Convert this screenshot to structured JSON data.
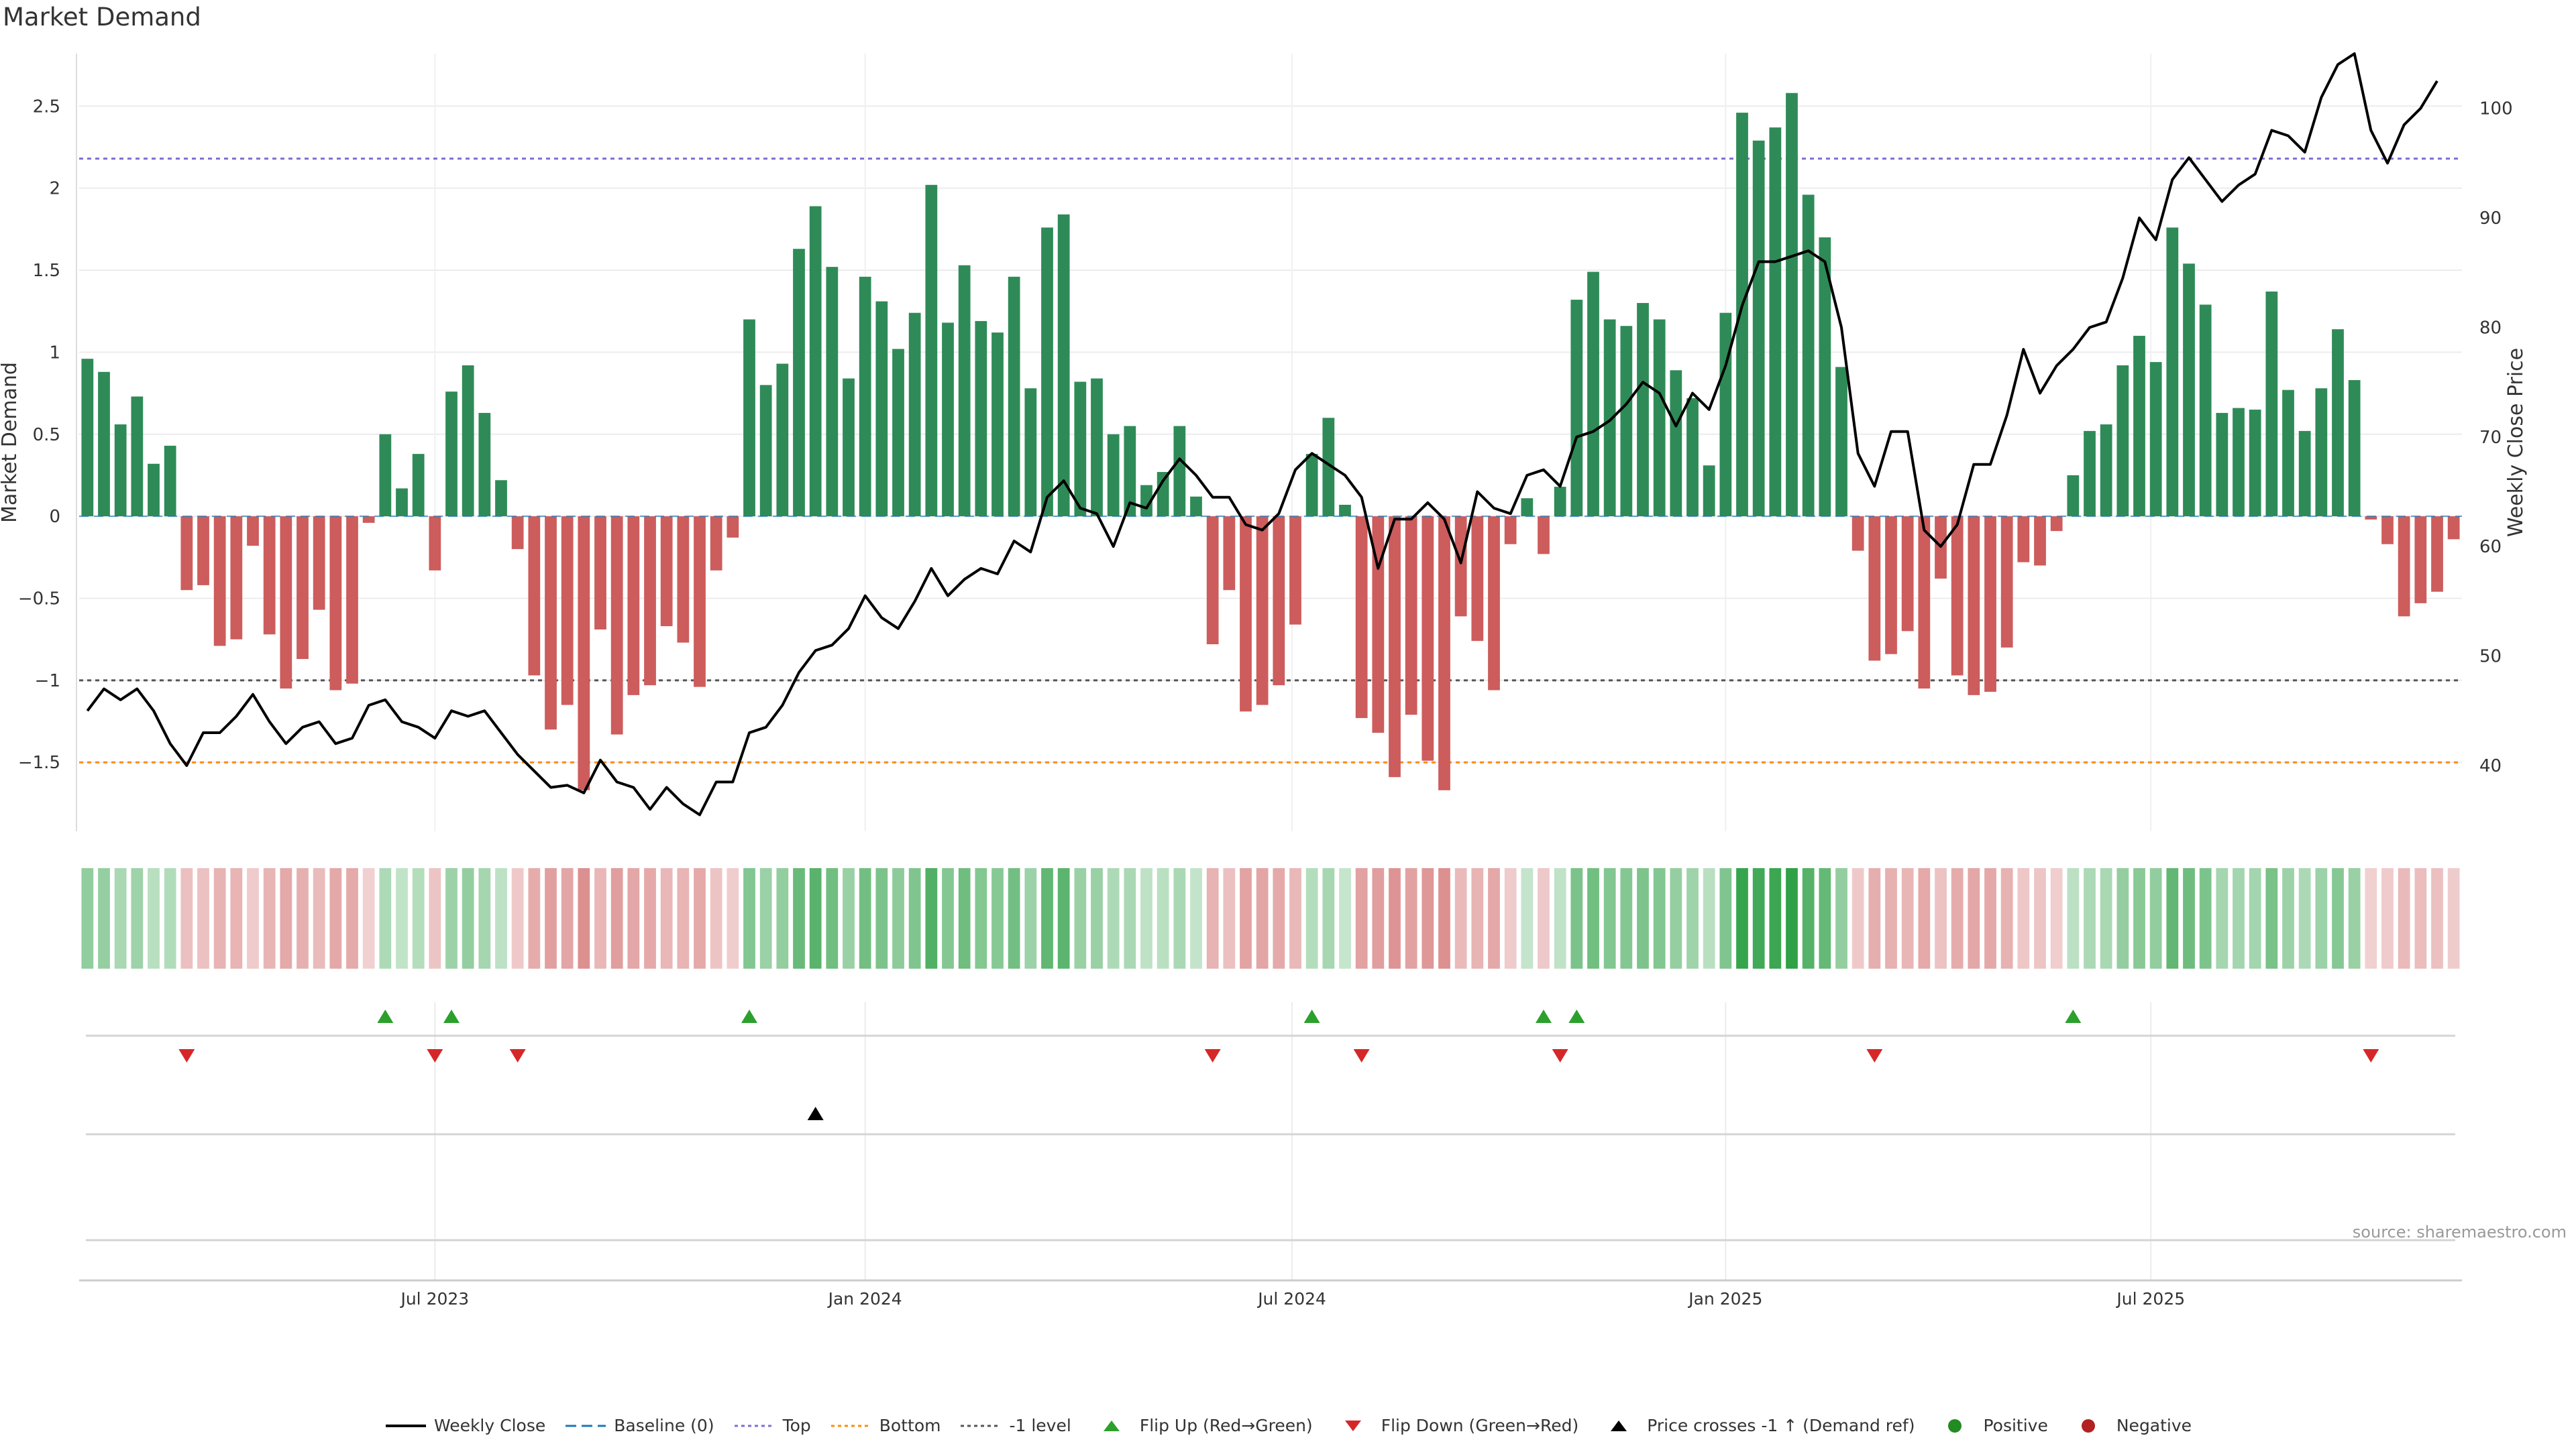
{
  "title": "Market Demand",
  "source": "source: sharemaestro.com",
  "colors": {
    "positive": "#2e8b57",
    "negative": "#cd5c5c",
    "price_line": "#000000",
    "top_line": "#7b6fd0",
    "bottom_line": "#ff8c00",
    "minus1_line": "#555555",
    "flip_up": "#2ca02c",
    "flip_down": "#d62728",
    "cross": "#000000",
    "baseline": "#1f77b4",
    "dot_positive": "#228b22",
    "dot_negative": "#b22222"
  },
  "chart_data": {
    "type": "bar",
    "title": "Market Demand",
    "ylabel": "Market Demand",
    "y2label": "Weekly Close Price",
    "ylim": [
      -1.92,
      2.82
    ],
    "y2lim": [
      34,
      105
    ],
    "yticks": [
      {
        "v": 2.5,
        "label": "2.5"
      },
      {
        "v": 2,
        "label": "2"
      },
      {
        "v": 1.5,
        "label": "1.5"
      },
      {
        "v": 1,
        "label": "1"
      },
      {
        "v": 0.5,
        "label": "0.5"
      },
      {
        "v": 0,
        "label": "0"
      },
      {
        "v": -0.5,
        "label": "−0.5"
      },
      {
        "v": -1,
        "label": "−1"
      },
      {
        "v": -1.5,
        "label": "−1.5"
      }
    ],
    "y2ticks": [
      {
        "v": 100,
        "label": "100"
      },
      {
        "v": 90,
        "label": "90"
      },
      {
        "v": 80,
        "label": "80"
      },
      {
        "v": 70,
        "label": "70"
      },
      {
        "v": 60,
        "label": "60"
      },
      {
        "v": 50,
        "label": "50"
      },
      {
        "v": 40,
        "label": "40"
      }
    ],
    "xticks": [
      {
        "week": 21.5,
        "label": "Jul 2023"
      },
      {
        "week": 47.5,
        "label": "Jan 2024"
      },
      {
        "week": 73.3,
        "label": "Jul 2024"
      },
      {
        "week": 99.5,
        "label": "Jan 2025"
      },
      {
        "week": 125.2,
        "label": "Jul 2025"
      }
    ],
    "levels": {
      "top": 2.18,
      "bottom": -1.5,
      "minus1": -1,
      "baseline": 0
    },
    "demand": [
      0.96,
      0.88,
      0.56,
      0.73,
      0.32,
      0.43,
      -0.45,
      -0.42,
      -0.79,
      -0.75,
      -0.18,
      -0.72,
      -1.05,
      -0.87,
      -0.57,
      -1.06,
      -1.02,
      -0.04,
      0.5,
      0.17,
      0.38,
      -0.33,
      0.76,
      0.92,
      0.63,
      0.22,
      -0.2,
      -0.97,
      -1.3,
      -1.15,
      -1.67,
      -0.69,
      -1.33,
      -1.09,
      -1.03,
      -0.67,
      -0.77,
      -1.04,
      -0.33,
      -0.13,
      1.2,
      0.8,
      0.93,
      1.63,
      1.89,
      1.52,
      0.84,
      1.46,
      1.31,
      1.02,
      1.24,
      2.02,
      1.18,
      1.53,
      1.19,
      1.12,
      1.46,
      0.78,
      1.76,
      1.84,
      0.82,
      0.84,
      0.5,
      0.55,
      0.19,
      0.27,
      0.55,
      0.12,
      -0.78,
      -0.45,
      -1.19,
      -1.15,
      -1.03,
      -0.66,
      0.38,
      0.6,
      0.07,
      -1.23,
      -1.32,
      -1.59,
      -1.21,
      -1.49,
      -1.67,
      -0.61,
      -0.76,
      -1.06,
      -0.17,
      0.11,
      -0.23,
      0.18,
      1.32,
      1.49,
      1.2,
      1.16,
      1.3,
      1.2,
      0.89,
      0.72,
      0.31,
      1.24,
      2.46,
      2.29,
      2.37,
      2.58,
      1.96,
      1.7,
      0.91,
      -0.21,
      -0.88,
      -0.84,
      -0.7,
      -1.05,
      -0.38,
      -0.97,
      -1.09,
      -1.07,
      -0.8,
      -0.28,
      -0.3,
      -0.09,
      0.25,
      0.52,
      0.56,
      0.92,
      1.1,
      0.94,
      1.76,
      1.54,
      1.29,
      0.63,
      0.66,
      0.65,
      1.37,
      0.77,
      0.52,
      0.78,
      1.14,
      0.83,
      -0.02,
      -0.17,
      -0.61,
      -0.53,
      -0.46,
      -0.14
    ],
    "price": [
      45,
      47,
      46,
      47,
      45,
      42,
      40,
      43,
      43,
      44.5,
      46.5,
      44,
      42,
      43.5,
      44,
      42,
      42.5,
      45.5,
      46,
      44,
      43.5,
      42.5,
      45,
      44.5,
      45,
      43,
      41,
      39.5,
      38,
      38.2,
      37.5,
      40.5,
      38.5,
      38,
      36,
      38,
      36.5,
      35.5,
      38.5,
      38.5,
      43,
      43.5,
      45.5,
      48.5,
      50.5,
      51,
      52.5,
      55.5,
      53.5,
      52.5,
      55,
      58,
      55.5,
      57,
      58,
      57.5,
      60.5,
      59.5,
      64.5,
      66,
      63.5,
      63,
      60,
      64,
      63.5,
      66,
      68,
      66.5,
      64.5,
      64.5,
      62,
      61.5,
      63,
      67,
      68.5,
      67.5,
      66.5,
      64.5,
      58,
      62.5,
      62.5,
      64,
      62.5,
      58.5,
      65,
      63.5,
      63,
      66.5,
      67,
      65.5,
      70,
      70.5,
      71.5,
      73,
      75,
      74,
      71,
      74,
      72.5,
      76.5,
      82,
      86,
      86,
      86.5,
      87,
      86,
      80,
      68.5,
      65.5,
      70.5,
      70.5,
      61.5,
      60,
      62,
      67.5,
      67.5,
      72,
      78,
      74,
      76.5,
      78,
      80,
      80.5,
      84.5,
      90,
      88,
      93.5,
      95.5,
      93.5,
      91.5,
      93,
      94,
      98,
      97.5,
      96,
      101,
      104,
      105,
      98,
      95,
      98.5,
      100,
      102.5
    ]
  },
  "flips_up": [
    18,
    22,
    40,
    74,
    88,
    90,
    120
  ],
  "flips_down": [
    6,
    21,
    26,
    68,
    77,
    89,
    108,
    138
  ],
  "cross_events": [
    44
  ],
  "legend": [
    {
      "key": "price",
      "label": "Weekly Close"
    },
    {
      "key": "baseline",
      "label": "Baseline (0)"
    },
    {
      "key": "top",
      "label": "Top"
    },
    {
      "key": "bottom",
      "label": "Bottom"
    },
    {
      "key": "minus1",
      "label": "-1 level"
    },
    {
      "key": "flip_up",
      "label": "Flip Up (Red→Green)"
    },
    {
      "key": "flip_down",
      "label": "Flip Down (Green→Red)"
    },
    {
      "key": "cross",
      "label": "Price crosses -1 ↑ (Demand ref)"
    },
    {
      "key": "dot_positive",
      "label": "Positive"
    },
    {
      "key": "dot_negative",
      "label": "Negative"
    }
  ]
}
